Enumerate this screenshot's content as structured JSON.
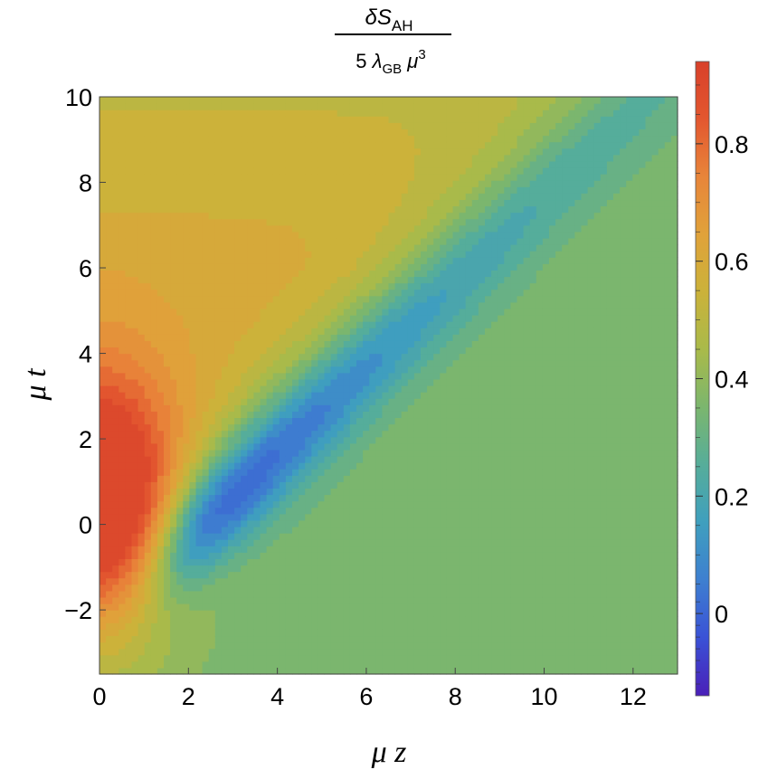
{
  "chart_data": {
    "type": "contour",
    "title": {
      "numerator_main": "δS",
      "numerator_sub": "AH",
      "denominator_coeff": "5",
      "denominator_lambda": "λ",
      "denominator_lambda_sub": "GB",
      "denominator_mu": "μ",
      "denominator_mu_sup": "3"
    },
    "xlabel": "μ z",
    "ylabel": "μ t",
    "xlim": [
      0,
      13
    ],
    "ylim": [
      -3.5,
      10
    ],
    "x_ticks": [
      0,
      2,
      4,
      6,
      8,
      10,
      12
    ],
    "x_tick_labels": [
      "0",
      "2",
      "4",
      "6",
      "8",
      "10",
      "12"
    ],
    "y_ticks": [
      -2,
      0,
      2,
      4,
      6,
      8,
      10
    ],
    "y_tick_labels": [
      "−2",
      "0",
      "2",
      "4",
      "6",
      "8",
      "10"
    ],
    "colorbar": {
      "range": [
        -0.14,
        0.94
      ],
      "ticks": [
        0,
        0.2,
        0.4,
        0.6,
        0.8
      ],
      "tick_labels": [
        "0",
        "0.2",
        "0.4",
        "0.6",
        "0.8"
      ],
      "colors": [
        "#4a1fb8",
        "#3a52d6",
        "#3e7fd0",
        "#3f9fbe",
        "#56ad9a",
        "#7bb66e",
        "#a9ba4a",
        "#cbb23a",
        "#e0a23a",
        "#e8853a",
        "#e3572f",
        "#d8402a"
      ]
    },
    "features": {
      "maximum": {
        "z": 0.1,
        "t": 0.3,
        "value": 0.93
      },
      "minimum": {
        "z": 2.6,
        "t": 0.4,
        "value": -0.14
      },
      "far_field_value": 0.37,
      "top_left_value": 0.42,
      "contour_levels": [
        -0.12,
        -0.1,
        -0.08,
        -0.06,
        -0.04,
        -0.02,
        0,
        0.02,
        0.05,
        0.1,
        0.15,
        0.2,
        0.25,
        0.3,
        0.35,
        0.4,
        0.45,
        0.5,
        0.55,
        0.6,
        0.65,
        0.7,
        0.75,
        0.8,
        0.85,
        0.9
      ]
    }
  }
}
